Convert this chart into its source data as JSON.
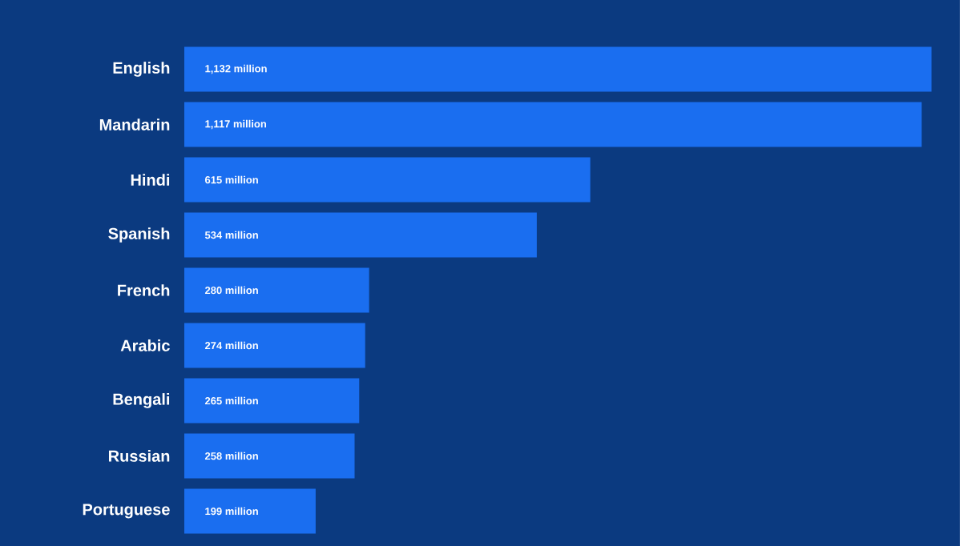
{
  "chart_data": {
    "type": "bar",
    "orientation": "horizontal",
    "color": "#1a6ef0",
    "categories": [
      "English",
      "Mandarin",
      "Hindi",
      "Spanish",
      "French",
      "Arabic",
      "Bengali",
      "Russian",
      "Portuguese"
    ],
    "values": [
      1132,
      1117,
      615,
      534,
      280,
      274,
      265,
      258,
      199
    ],
    "value_labels": [
      "1,132 million",
      "1,117 million",
      "615 million",
      "534 million",
      "280 million",
      "274 million",
      "265 million",
      "258 million",
      "199 million"
    ],
    "xlim": [
      0,
      1175
    ]
  }
}
